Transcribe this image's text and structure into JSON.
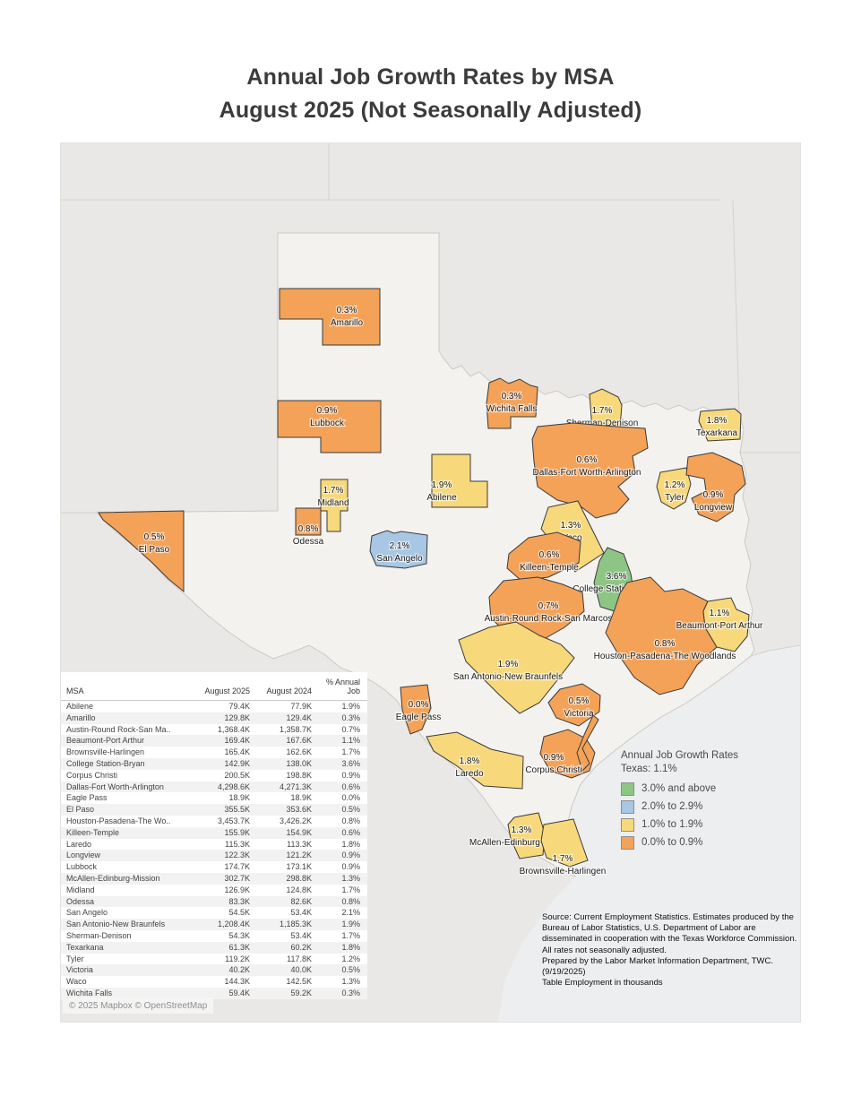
{
  "title": {
    "line1": "Annual Job Growth Rates by MSA",
    "line2": "August 2025 (Not Seasonally Adjusted)"
  },
  "legend": {
    "title": "Annual Job Growth Rates",
    "subtitle": "Texas: 1.1%",
    "items": [
      {
        "label": "3.0% and above",
        "color": "#8dc585"
      },
      {
        "label": "2.0% to 2.9%",
        "color": "#a7c7e4"
      },
      {
        "label": "1.0% to 1.9%",
        "color": "#f7d87a"
      },
      {
        "label": "0.0% to 0.9%",
        "color": "#f3a258"
      }
    ]
  },
  "map": {
    "regions": [
      {
        "id": "amarillo",
        "name": "Amarillo",
        "rate": "0.3%",
        "category": 3
      },
      {
        "id": "lubbock",
        "name": "Lubbock",
        "rate": "0.9%",
        "category": 3
      },
      {
        "id": "wichita-falls",
        "name": "Wichita Falls",
        "rate": "0.3%",
        "category": 3
      },
      {
        "id": "sherman-denison",
        "name": "Sherman-Denison",
        "rate": "1.7%",
        "category": 2
      },
      {
        "id": "texarkana",
        "name": "Texarkana",
        "rate": "1.8%",
        "category": 2
      },
      {
        "id": "dfw",
        "name": "Dallas-Fort Worth-Arlington",
        "rate": "0.6%",
        "category": 3
      },
      {
        "id": "tyler",
        "name": "Tyler",
        "rate": "1.2%",
        "category": 2
      },
      {
        "id": "longview",
        "name": "Longview",
        "rate": "0.9%",
        "category": 3
      },
      {
        "id": "abilene",
        "name": "Abilene",
        "rate": "1.9%",
        "category": 2
      },
      {
        "id": "midland",
        "name": "Midland",
        "rate": "1.7%",
        "category": 2
      },
      {
        "id": "odessa",
        "name": "Odessa",
        "rate": "0.8%",
        "category": 3
      },
      {
        "id": "san-angelo",
        "name": "San Angelo",
        "rate": "2.1%",
        "category": 1
      },
      {
        "id": "el-paso",
        "name": "El Paso",
        "rate": "0.5%",
        "category": 3
      },
      {
        "id": "waco",
        "name": "Waco",
        "rate": "1.3%",
        "category": 2
      },
      {
        "id": "killeen-temple",
        "name": "Killeen-Temple",
        "rate": "0.6%",
        "category": 3
      },
      {
        "id": "college-station",
        "name": "College Station-Bryan",
        "rate": "3.6%",
        "category": 0
      },
      {
        "id": "austin",
        "name": "Austin-Round Rock-San Marcos",
        "rate": "0.7%",
        "category": 3
      },
      {
        "id": "houston",
        "name": "Houston-Pasadena-The Woodlands",
        "rate": "0.8%",
        "category": 3
      },
      {
        "id": "beaumont",
        "name": "Beaumont-Port Arthur",
        "rate": "1.1%",
        "category": 2
      },
      {
        "id": "san-antonio",
        "name": "San Antonio-New Braunfels",
        "rate": "1.9%",
        "category": 2
      },
      {
        "id": "eagle-pass",
        "name": "Eagle Pass",
        "rate": "0.0%",
        "category": 3
      },
      {
        "id": "victoria",
        "name": "Victoria",
        "rate": "0.5%",
        "category": 3
      },
      {
        "id": "laredo",
        "name": "Laredo",
        "rate": "1.8%",
        "category": 2
      },
      {
        "id": "corpus-christi",
        "name": "Corpus Christi",
        "rate": "0.9%",
        "category": 3
      },
      {
        "id": "mcallen",
        "name": "McAllen-Edinburg-Mission",
        "rate": "1.3%",
        "category": 2
      },
      {
        "id": "brownsville",
        "name": "Brownsville-Harlingen",
        "rate": "1.7%",
        "category": 2
      }
    ]
  },
  "table": {
    "columns": [
      "MSA",
      "August 2025",
      "August 2024",
      "% Annual Job"
    ],
    "rows": [
      [
        "Abilene",
        "79.4K",
        "77.9K",
        "1.9%"
      ],
      [
        "Amarillo",
        "129.8K",
        "129.4K",
        "0.3%"
      ],
      [
        "Austin-Round Rock-San Ma..",
        "1,368.4K",
        "1,358.7K",
        "0.7%"
      ],
      [
        "Beaumont-Port Arthur",
        "169.4K",
        "167.6K",
        "1.1%"
      ],
      [
        "Brownsville-Harlingen",
        "165.4K",
        "162.6K",
        "1.7%"
      ],
      [
        "College Station-Bryan",
        "142.9K",
        "138.0K",
        "3.6%"
      ],
      [
        "Corpus Christi",
        "200.5K",
        "198.8K",
        "0.9%"
      ],
      [
        "Dallas-Fort Worth-Arlington",
        "4,298.6K",
        "4,271.3K",
        "0.6%"
      ],
      [
        "Eagle Pass",
        "18.9K",
        "18.9K",
        "0.0%"
      ],
      [
        "El Paso",
        "355.5K",
        "353.6K",
        "0.5%"
      ],
      [
        "Houston-Pasadena-The Wo..",
        "3,453.7K",
        "3,426.2K",
        "0.8%"
      ],
      [
        "Killeen-Temple",
        "155.9K",
        "154.9K",
        "0.6%"
      ],
      [
        "Laredo",
        "115.3K",
        "113.3K",
        "1.8%"
      ],
      [
        "Longview",
        "122.3K",
        "121.2K",
        "0.9%"
      ],
      [
        "Lubbock",
        "174.7K",
        "173.1K",
        "0.9%"
      ],
      [
        "McAllen-Edinburg-Mission",
        "302.7K",
        "298.8K",
        "1.3%"
      ],
      [
        "Midland",
        "126.9K",
        "124.8K",
        "1.7%"
      ],
      [
        "Odessa",
        "83.3K",
        "82.6K",
        "0.8%"
      ],
      [
        "San Angelo",
        "54.5K",
        "53.4K",
        "2.1%"
      ],
      [
        "San Antonio-New Braunfels",
        "1,208.4K",
        "1,185.3K",
        "1.9%"
      ],
      [
        "Sherman-Denison",
        "54.3K",
        "53.4K",
        "1.7%"
      ],
      [
        "Texarkana",
        "61.3K",
        "60.2K",
        "1.8%"
      ],
      [
        "Tyler",
        "119.2K",
        "117.8K",
        "1.2%"
      ],
      [
        "Victoria",
        "40.2K",
        "40.0K",
        "0.5%"
      ],
      [
        "Waco",
        "144.3K",
        "142.5K",
        "1.3%"
      ],
      [
        "Wichita Falls",
        "59.4K",
        "59.2K",
        "0.3%"
      ]
    ]
  },
  "notes": {
    "lines": [
      "Source: Current Employment Statistics. Estimates produced by the",
      "Bureau of Labor Statistics, U.S. Department of Labor are",
      "disseminated in cooperation with the Texas Workforce Commission.",
      "All rates not seasonally adjusted.",
      "Prepared by the Labor Market Information Department, TWC.",
      "(9/19/2025)",
      "Table Employment in thousands"
    ]
  },
  "attribution": "© 2025 Mapbox © OpenStreetMap"
}
